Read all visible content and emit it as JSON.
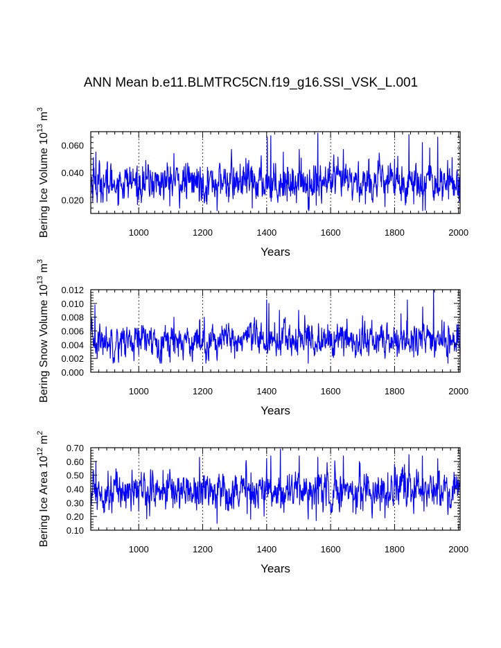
{
  "figure_title": "ANN Mean b.e11.BLMTRC5CN.f19_g16.SSI_VSK_L.001",
  "chart_data": [
    {
      "type": "line",
      "xlabel": "Years",
      "ylabel": {
        "main": "Bering Ice Volume 10",
        "exp": "13",
        "unit": " m",
        "unit_exp": "3"
      },
      "xlim": [
        850,
        2005
      ],
      "ylim": [
        0.01,
        0.07
      ],
      "xticks": [
        1000,
        1200,
        1400,
        1600,
        1800,
        2000
      ],
      "yticks": [
        0.02,
        0.04,
        0.06
      ],
      "ytick_labels": [
        "0.020",
        "0.040",
        "0.060"
      ],
      "grid_x": true,
      "color": "#0000ff",
      "x_start": 850,
      "x_end": 2005,
      "series_stats": {
        "mean": 0.033,
        "std": 0.007,
        "min": 0.012,
        "max": 0.069
      },
      "peaks": [
        [
          858,
          0.051
        ],
        [
          866,
          0.055
        ],
        [
          1110,
          0.054
        ],
        [
          1290,
          0.057
        ],
        [
          1402,
          0.066
        ],
        [
          1413,
          0.067
        ],
        [
          1452,
          0.055
        ],
        [
          1502,
          0.057
        ],
        [
          1560,
          0.069
        ],
        [
          1640,
          0.057
        ],
        [
          1720,
          0.05
        ],
        [
          1800,
          0.05
        ],
        [
          1810,
          0.052
        ],
        [
          1845,
          0.068
        ],
        [
          1887,
          0.062
        ],
        [
          1910,
          0.058
        ],
        [
          1935,
          0.066
        ]
      ],
      "troughs": [
        [
          870,
          0.018
        ],
        [
          900,
          0.019
        ],
        [
          1000,
          0.02
        ],
        [
          1245,
          0.012
        ],
        [
          1355,
          0.014
        ],
        [
          1530,
          0.013
        ],
        [
          1555,
          0.016
        ],
        [
          1770,
          0.015
        ],
        [
          1860,
          0.017
        ],
        [
          2002,
          0.019
        ]
      ]
    },
    {
      "type": "line",
      "xlabel": "Years",
      "ylabel": {
        "main": "Bering Snow Volume 10",
        "exp": "13",
        "unit": " m",
        "unit_exp": "3"
      },
      "xlim": [
        850,
        2005
      ],
      "ylim": [
        0.0,
        0.012
      ],
      "xticks": [
        1000,
        1200,
        1400,
        1600,
        1800,
        2000
      ],
      "yticks": [
        0.0,
        0.002,
        0.004,
        0.006,
        0.008,
        0.01,
        0.012
      ],
      "ytick_labels": [
        "0.000",
        "0.002",
        "0.004",
        "0.006",
        "0.008",
        "0.010",
        "0.012"
      ],
      "grid_x": true,
      "color": "#0000ff",
      "x_start": 850,
      "x_end": 2005,
      "series_stats": {
        "mean": 0.0046,
        "std": 0.0012,
        "min": 0.0013,
        "max": 0.012
      },
      "peaks": [
        [
          863,
          0.0098
        ],
        [
          1110,
          0.008
        ],
        [
          1205,
          0.008
        ],
        [
          1400,
          0.0105
        ],
        [
          1407,
          0.01
        ],
        [
          1440,
          0.009
        ],
        [
          1500,
          0.009
        ],
        [
          1700,
          0.0082
        ],
        [
          1820,
          0.0085
        ],
        [
          1840,
          0.0105
        ],
        [
          1888,
          0.0095
        ],
        [
          1922,
          0.012
        ]
      ],
      "troughs": [
        [
          870,
          0.002
        ],
        [
          1000,
          0.0025
        ],
        [
          1245,
          0.0017
        ],
        [
          1300,
          0.002
        ],
        [
          1530,
          0.0013
        ],
        [
          1770,
          0.002
        ],
        [
          1860,
          0.0022
        ]
      ]
    },
    {
      "type": "line",
      "xlabel": "Years",
      "ylabel": {
        "main": "Bering Ice Area 10",
        "exp": "12",
        "unit": " m",
        "unit_exp": "2"
      },
      "xlim": [
        850,
        2005
      ],
      "ylim": [
        0.1,
        0.7
      ],
      "xticks": [
        1000,
        1200,
        1400,
        1600,
        1800,
        2000
      ],
      "yticks": [
        0.1,
        0.2,
        0.3,
        0.4,
        0.5,
        0.6,
        0.7
      ],
      "ytick_labels": [
        "0.10",
        "0.20",
        "0.30",
        "0.40",
        "0.50",
        "0.60",
        "0.70"
      ],
      "grid_x": true,
      "color": "#0000ff",
      "x_start": 850,
      "x_end": 2005,
      "series_stats": {
        "mean": 0.39,
        "std": 0.07,
        "min": 0.15,
        "max": 0.69
      },
      "peaks": [
        [
          866,
          0.6
        ],
        [
          1190,
          0.63
        ],
        [
          1400,
          0.62
        ],
        [
          1413,
          0.64
        ],
        [
          1443,
          0.69
        ],
        [
          1502,
          0.64
        ],
        [
          1560,
          0.63
        ],
        [
          1640,
          0.64
        ],
        [
          1800,
          0.58
        ],
        [
          1845,
          0.65
        ],
        [
          1887,
          0.64
        ],
        [
          1935,
          0.62
        ]
      ],
      "troughs": [
        [
          870,
          0.25
        ],
        [
          1000,
          0.24
        ],
        [
          1245,
          0.15
        ],
        [
          1350,
          0.18
        ],
        [
          1530,
          0.18
        ],
        [
          1555,
          0.17
        ],
        [
          1770,
          0.19
        ],
        [
          1860,
          0.22
        ]
      ]
    }
  ]
}
